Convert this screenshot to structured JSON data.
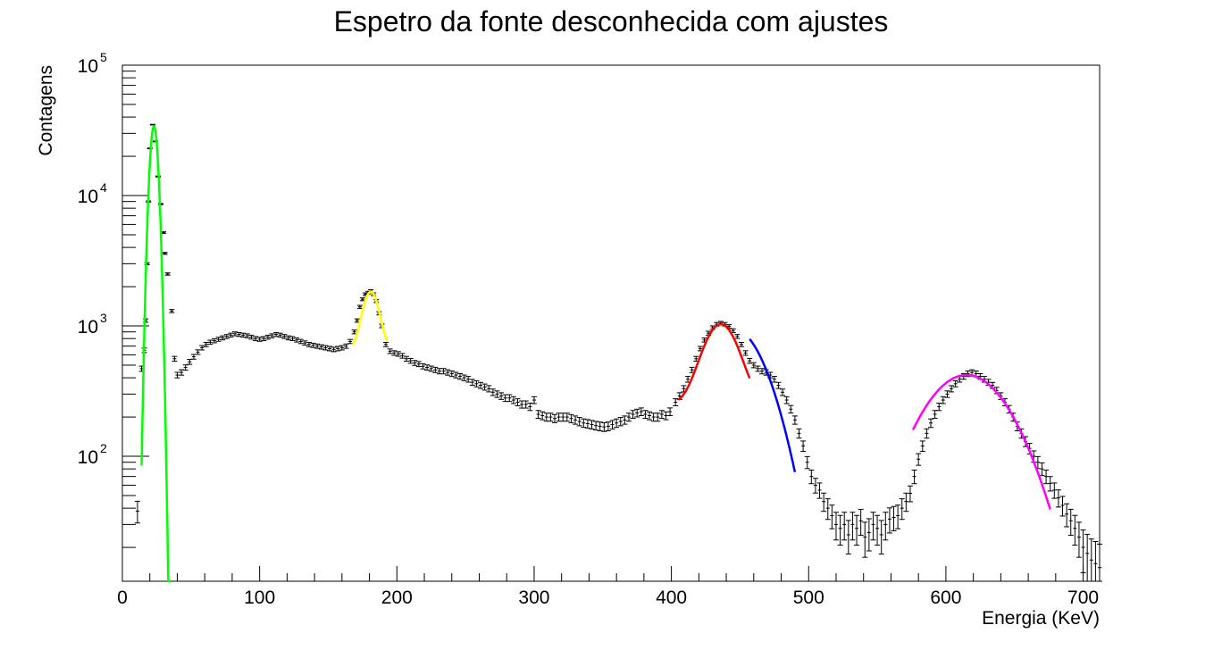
{
  "chart_data": {
    "type": "scatter",
    "title": "Espetro da fonte desconhecida com ajustes",
    "xlabel": "Energia (KeV)",
    "ylabel": "Contagens",
    "xlim": [
      0,
      712
    ],
    "ylim": [
      11,
      100000
    ],
    "yscale": "log",
    "grid": false,
    "legend": "none",
    "x_ticks": [
      0,
      100,
      200,
      300,
      400,
      500,
      600,
      700
    ],
    "x_tick_labels": [
      "0",
      "100",
      "200",
      "300",
      "400",
      "500",
      "600",
      "700"
    ],
    "y_tick_labels": [
      {
        "value": 100,
        "base": "10",
        "exp": "2"
      },
      {
        "value": 1000,
        "base": "10",
        "exp": "3"
      },
      {
        "value": 10000,
        "base": "10",
        "exp": "4"
      },
      {
        "value": 100000,
        "base": "10",
        "exp": "5"
      }
    ],
    "series": [
      {
        "kind": "data",
        "color": "#000000",
        "points": [
          [
            11,
            38
          ],
          [
            14,
            470
          ],
          [
            16,
            650
          ],
          [
            17,
            1100
          ],
          [
            18,
            3000
          ],
          [
            19,
            9000
          ],
          [
            20,
            23000
          ],
          [
            22,
            35000
          ],
          [
            24,
            26000
          ],
          [
            26,
            14000
          ],
          [
            28,
            8600
          ],
          [
            30,
            5200
          ],
          [
            31,
            3600
          ],
          [
            33,
            2500
          ],
          [
            36,
            1300
          ],
          [
            38,
            560
          ],
          [
            40,
            420
          ],
          [
            43,
            440
          ],
          [
            46,
            480
          ],
          [
            49,
            530
          ],
          [
            52,
            580
          ],
          [
            55,
            630
          ],
          [
            58,
            680
          ],
          [
            61,
            720
          ],
          [
            64,
            750
          ],
          [
            67,
            770
          ],
          [
            70,
            790
          ],
          [
            73,
            810
          ],
          [
            76,
            830
          ],
          [
            79,
            850
          ],
          [
            82,
            870
          ],
          [
            85,
            860
          ],
          [
            88,
            850
          ],
          [
            91,
            840
          ],
          [
            94,
            820
          ],
          [
            97,
            800
          ],
          [
            100,
            790
          ],
          [
            103,
            800
          ],
          [
            106,
            820
          ],
          [
            109,
            840
          ],
          [
            112,
            860
          ],
          [
            115,
            850
          ],
          [
            118,
            830
          ],
          [
            121,
            810
          ],
          [
            124,
            800
          ],
          [
            127,
            780
          ],
          [
            130,
            760
          ],
          [
            133,
            740
          ],
          [
            136,
            720
          ],
          [
            139,
            710
          ],
          [
            142,
            700
          ],
          [
            145,
            690
          ],
          [
            148,
            680
          ],
          [
            151,
            670
          ],
          [
            154,
            660
          ],
          [
            157,
            670
          ],
          [
            160,
            680
          ],
          [
            163,
            700
          ],
          [
            166,
            760
          ],
          [
            169,
            900
          ],
          [
            171,
            1100
          ],
          [
            173,
            1400
          ],
          [
            175,
            1600
          ],
          [
            177,
            1750
          ],
          [
            179,
            1800
          ],
          [
            181,
            1850
          ],
          [
            183,
            1750
          ],
          [
            185,
            1550
          ],
          [
            187,
            1250
          ],
          [
            189,
            1000
          ],
          [
            192,
            720
          ],
          [
            195,
            640
          ],
          [
            198,
            620
          ],
          [
            201,
            610
          ],
          [
            204,
            590
          ],
          [
            207,
            560
          ],
          [
            210,
            540
          ],
          [
            213,
            520
          ],
          [
            216,
            510
          ],
          [
            219,
            490
          ],
          [
            222,
            480
          ],
          [
            225,
            470
          ],
          [
            228,
            460
          ],
          [
            231,
            450
          ],
          [
            234,
            450
          ],
          [
            237,
            440
          ],
          [
            240,
            430
          ],
          [
            243,
            420
          ],
          [
            246,
            410
          ],
          [
            249,
            400
          ],
          [
            252,
            390
          ],
          [
            255,
            370
          ],
          [
            258,
            360
          ],
          [
            261,
            350
          ],
          [
            264,
            340
          ],
          [
            267,
            330
          ],
          [
            270,
            310
          ],
          [
            273,
            300
          ],
          [
            276,
            290
          ],
          [
            279,
            280
          ],
          [
            282,
            280
          ],
          [
            285,
            270
          ],
          [
            288,
            260
          ],
          [
            291,
            250
          ],
          [
            294,
            250
          ],
          [
            297,
            240
          ],
          [
            300,
            270
          ],
          [
            303,
            210
          ],
          [
            306,
            205
          ],
          [
            309,
            200
          ],
          [
            312,
            200
          ],
          [
            315,
            195
          ],
          [
            318,
            200
          ],
          [
            321,
            200
          ],
          [
            324,
            200
          ],
          [
            327,
            195
          ],
          [
            330,
            190
          ],
          [
            333,
            185
          ],
          [
            336,
            180
          ],
          [
            339,
            178
          ],
          [
            342,
            175
          ],
          [
            345,
            172
          ],
          [
            348,
            170
          ],
          [
            351,
            168
          ],
          [
            354,
            170
          ],
          [
            357,
            175
          ],
          [
            360,
            180
          ],
          [
            363,
            185
          ],
          [
            366,
            190
          ],
          [
            369,
            200
          ],
          [
            372,
            210
          ],
          [
            375,
            215
          ],
          [
            378,
            220
          ],
          [
            381,
            210
          ],
          [
            384,
            205
          ],
          [
            387,
            200
          ],
          [
            390,
            200
          ],
          [
            393,
            210
          ],
          [
            396,
            205
          ],
          [
            399,
            220
          ],
          [
            403,
            260
          ],
          [
            406,
            290
          ],
          [
            409,
            330
          ],
          [
            412,
            390
          ],
          [
            415,
            460
          ],
          [
            418,
            560
          ],
          [
            421,
            670
          ],
          [
            424,
            780
          ],
          [
            427,
            880
          ],
          [
            430,
            970
          ],
          [
            433,
            1030
          ],
          [
            436,
            1050
          ],
          [
            439,
            1030
          ],
          [
            442,
            990
          ],
          [
            445,
            920
          ],
          [
            448,
            830
          ],
          [
            451,
            720
          ],
          [
            454,
            620
          ],
          [
            457,
            540
          ],
          [
            460,
            500
          ],
          [
            463,
            470
          ],
          [
            466,
            450
          ],
          [
            469,
            440
          ],
          [
            472,
            420
          ],
          [
            475,
            390
          ],
          [
            478,
            350
          ],
          [
            481,
            310
          ],
          [
            484,
            270
          ],
          [
            487,
            230
          ],
          [
            490,
            190
          ],
          [
            493,
            150
          ],
          [
            496,
            120
          ],
          [
            499,
            90
          ],
          [
            502,
            70
          ],
          [
            505,
            60
          ],
          [
            508,
            55
          ],
          [
            511,
            45
          ],
          [
            514,
            40
          ],
          [
            517,
            35
          ],
          [
            520,
            30
          ],
          [
            523,
            28
          ],
          [
            526,
            30
          ],
          [
            529,
            25
          ],
          [
            532,
            30
          ],
          [
            535,
            28
          ],
          [
            538,
            32
          ],
          [
            541,
            24
          ],
          [
            544,
            26
          ],
          [
            547,
            30
          ],
          [
            550,
            28
          ],
          [
            553,
            25
          ],
          [
            556,
            30
          ],
          [
            559,
            33
          ],
          [
            562,
            34
          ],
          [
            565,
            35
          ],
          [
            568,
            40
          ],
          [
            571,
            45
          ],
          [
            574,
            52
          ],
          [
            577,
            70
          ],
          [
            580,
            95
          ],
          [
            583,
            120
          ],
          [
            586,
            150
          ],
          [
            589,
            180
          ],
          [
            592,
            210
          ],
          [
            595,
            240
          ],
          [
            598,
            270
          ],
          [
            601,
            300
          ],
          [
            604,
            330
          ],
          [
            607,
            360
          ],
          [
            610,
            390
          ],
          [
            613,
            410
          ],
          [
            616,
            430
          ],
          [
            619,
            440
          ],
          [
            622,
            430
          ],
          [
            625,
            410
          ],
          [
            628,
            390
          ],
          [
            631,
            370
          ],
          [
            634,
            350
          ],
          [
            637,
            320
          ],
          [
            640,
            290
          ],
          [
            643,
            260
          ],
          [
            646,
            230
          ],
          [
            649,
            200
          ],
          [
            652,
            170
          ],
          [
            655,
            150
          ],
          [
            658,
            130
          ],
          [
            661,
            115
          ],
          [
            664,
            100
          ],
          [
            667,
            90
          ],
          [
            670,
            80
          ],
          [
            673,
            70
          ],
          [
            676,
            62
          ],
          [
            679,
            55
          ],
          [
            682,
            48
          ],
          [
            685,
            42
          ],
          [
            688,
            36
          ],
          [
            691,
            32
          ],
          [
            694,
            28
          ],
          [
            697,
            24
          ],
          [
            700,
            20
          ],
          [
            703,
            18
          ],
          [
            706,
            16
          ],
          [
            709,
            15
          ],
          [
            712,
            14
          ]
        ]
      },
      {
        "kind": "fit",
        "color": "#00ff00",
        "range": [
          14,
          35
        ],
        "amplitude": 34000,
        "mean": 23,
        "sigma": 2.6,
        "offset": 0
      },
      {
        "kind": "fit",
        "color": "#ffff00",
        "range": [
          168,
          193
        ],
        "amplitude": 1180,
        "mean": 181,
        "sigma": 5.5,
        "offset": 650
      },
      {
        "kind": "fit",
        "color": "#ff0000",
        "range": [
          405,
          457
        ],
        "amplitude": 780,
        "mean": 436,
        "sigma": 11.5,
        "offset": 250
      },
      {
        "kind": "fit",
        "color": "#0000ff",
        "range": [
          457,
          490
        ],
        "amplitude": 950,
        "mean": 445,
        "sigma": 20,
        "offset": 0
      },
      {
        "kind": "fit",
        "color": "#ff00ff",
        "range": [
          576,
          676
        ],
        "amplitude": 420,
        "mean": 615,
        "sigma": 28,
        "offset": 0
      }
    ]
  }
}
